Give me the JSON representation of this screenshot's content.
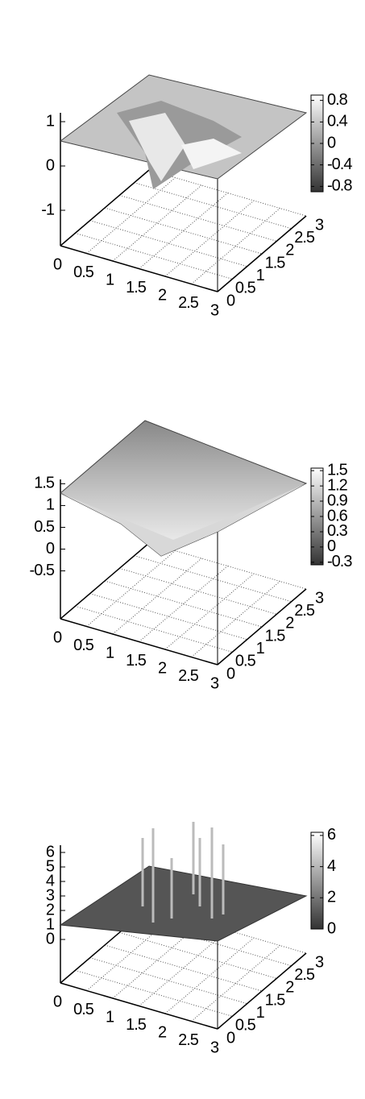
{
  "chart_data": [
    {
      "type": "surface",
      "xlim": [
        0,
        3
      ],
      "xticks": [
        0,
        0.5,
        1,
        1.5,
        2,
        2.5,
        3
      ],
      "ylim": [
        0,
        3
      ],
      "yticks": [
        0,
        0.5,
        1,
        1.5,
        2,
        2.5,
        3
      ],
      "zlim": [
        -1.8,
        1.2
      ],
      "zticks": [
        -1,
        0,
        1
      ],
      "cblim": [
        -0.9,
        0.9
      ],
      "cbticks": [
        -0.8,
        -0.4,
        0,
        0.4,
        0.8
      ]
    },
    {
      "type": "surface",
      "xlim": [
        0,
        3
      ],
      "xticks": [
        0,
        0.5,
        1,
        1.5,
        2,
        2.5,
        3
      ],
      "ylim": [
        0,
        3
      ],
      "yticks": [
        0,
        0.5,
        1,
        1.5,
        2,
        2.5,
        3
      ],
      "zlim": [
        -1.6,
        1.6
      ],
      "zticks": [
        -0.5,
        0,
        0.5,
        1,
        1.5
      ],
      "cblim": [
        -0.35,
        1.55
      ],
      "cbticks": [
        -0.3,
        0,
        0.3,
        0.6,
        0.9,
        1.2,
        1.5
      ]
    },
    {
      "type": "surface",
      "xlim": [
        0,
        3
      ],
      "xticks": [
        0,
        0.5,
        1,
        1.5,
        2,
        2.5,
        3
      ],
      "ylim": [
        0,
        3
      ],
      "yticks": [
        0,
        0.5,
        1,
        1.5,
        2,
        2.5,
        3
      ],
      "zlim": [
        -3,
        6.5
      ],
      "zticks": [
        0,
        1,
        2,
        3,
        4,
        5,
        6
      ],
      "cblim": [
        0,
        6.2
      ],
      "cbticks": [
        0,
        2,
        4,
        6
      ]
    }
  ]
}
